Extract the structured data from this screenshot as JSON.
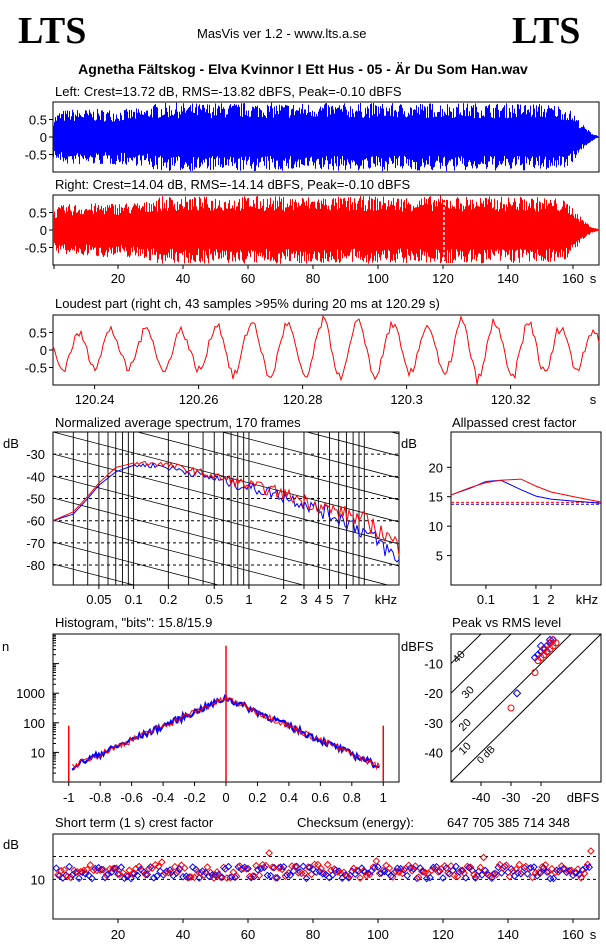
{
  "header": {
    "logo_left": "LTS",
    "logo_right": "LTS",
    "app_title": "MasVis ver 1.2 - www.lts.a.se",
    "file_title": "Agnetha Fältskog - Elva Kvinnor I Ett Hus - 05 - Är Du Som Han.wav"
  },
  "colors": {
    "left": "#0000ff",
    "right": "#ff0000",
    "grid": "#000000"
  },
  "chart_data": [
    {
      "id": "left-waveform",
      "type": "area",
      "title": "Left: Crest=13.72 dB, RMS=-13.82 dBFS, Peak=-0.10 dBFS",
      "yticks": [
        "0.5",
        "0",
        "-0.5"
      ],
      "ylim": [
        -1,
        1
      ],
      "xlim": [
        0,
        168
      ],
      "envelope": {
        "x": [
          0,
          2,
          5,
          10,
          15,
          20,
          25,
          29,
          30,
          35,
          40,
          45,
          50,
          55,
          60,
          65,
          70,
          75,
          80,
          85,
          90,
          95,
          100,
          105,
          110,
          115,
          120,
          125,
          130,
          135,
          140,
          145,
          150,
          155,
          158,
          160,
          162,
          164,
          166,
          168
        ],
        "amp": [
          0.6,
          0.75,
          0.8,
          0.8,
          0.8,
          0.8,
          0.82,
          0.85,
          0.95,
          0.98,
          0.98,
          0.97,
          0.98,
          0.98,
          0.99,
          0.98,
          0.98,
          0.97,
          0.98,
          0.97,
          0.97,
          0.98,
          0.98,
          0.97,
          0.97,
          0.98,
          0.99,
          0.98,
          0.98,
          0.97,
          0.97,
          0.97,
          0.96,
          0.93,
          0.85,
          0.7,
          0.45,
          0.25,
          0.1,
          0.02
        ]
      }
    },
    {
      "id": "right-waveform",
      "type": "area",
      "title": "Right: Crest=14.04 dB, RMS=-14.14 dBFS, Peak=-0.10 dBFS",
      "yticks": [
        "0.5",
        "0",
        "-0.5"
      ],
      "ylim": [
        -1,
        1
      ],
      "xlim": [
        0,
        168
      ],
      "xticks": [
        "20",
        "40",
        "60",
        "80",
        "100",
        "120",
        "140",
        "160"
      ],
      "xunit": "s",
      "marker_x": 120.29,
      "envelope": {
        "x": [
          0,
          2,
          5,
          10,
          15,
          20,
          25,
          29,
          30,
          35,
          40,
          45,
          50,
          55,
          60,
          65,
          70,
          75,
          80,
          85,
          90,
          95,
          100,
          105,
          110,
          115,
          120,
          125,
          130,
          135,
          140,
          145,
          150,
          155,
          158,
          160,
          162,
          164,
          166,
          168
        ],
        "amp": [
          0.55,
          0.7,
          0.75,
          0.75,
          0.78,
          0.78,
          0.8,
          0.82,
          0.95,
          0.97,
          0.97,
          0.96,
          0.97,
          0.97,
          0.98,
          0.97,
          0.97,
          0.96,
          0.97,
          0.96,
          0.96,
          0.97,
          0.97,
          0.96,
          0.96,
          0.97,
          0.99,
          0.97,
          0.97,
          0.96,
          0.96,
          0.96,
          0.95,
          0.92,
          0.82,
          0.65,
          0.4,
          0.22,
          0.08,
          0.02
        ]
      }
    },
    {
      "id": "loudest-part",
      "type": "line",
      "title": "Loudest part (right ch, 43 samples >95% during 20 ms at 120.29 s)",
      "yticks": [
        "0.5",
        "0",
        "-0.5"
      ],
      "ylim": [
        -1,
        1
      ],
      "xlim": [
        120.232,
        120.337
      ],
      "xticks": [
        "120.24",
        "120.26",
        "120.28",
        "120.3",
        "120.32"
      ],
      "xtick_values": [
        120.24,
        120.26,
        120.28,
        120.3,
        120.32
      ],
      "xunit": "s",
      "samples": [
        0.1,
        -0.4,
        -0.6,
        -0.2,
        0.3,
        0.5,
        0.2,
        -0.3,
        -0.5,
        -0.1,
        0.4,
        0.6,
        0.3,
        -0.2,
        -0.6,
        -0.4,
        0.1,
        0.5,
        0.7,
        0.2,
        -0.4,
        -0.7,
        -0.3,
        0.3,
        0.6,
        0.4,
        -0.1,
        -0.5,
        -0.6,
        -0.1,
        0.5,
        0.8,
        0.4,
        -0.3,
        -0.8,
        -0.5,
        0.2,
        0.7,
        0.8,
        0.2,
        -0.5,
        -0.9,
        -0.4,
        0.3,
        0.8,
        0.6,
        -0.1,
        -0.7,
        -0.8,
        -0.2,
        0.5,
        0.9,
        0.5,
        -0.3,
        -0.8,
        -0.6,
        0.1,
        0.7,
        0.8,
        0.2,
        -0.6,
        -0.8,
        -0.3,
        0.4,
        0.8,
        0.5,
        -0.2,
        -0.7,
        -0.6,
        0.1,
        0.6,
        0.7,
        0.2,
        -0.5,
        -0.8,
        -0.3,
        0.4,
        0.9,
        0.5,
        -0.3,
        -0.9,
        -0.6,
        0.2,
        0.8,
        0.7,
        0.0,
        -0.7,
        -0.8,
        -0.1,
        0.6,
        0.8,
        0.3,
        -0.5,
        -0.7,
        -0.2,
        0.5,
        0.7,
        0.3,
        -0.4,
        -0.6,
        -0.1,
        0.4,
        0.6,
        0.2
      ]
    },
    {
      "id": "spectrum",
      "type": "line",
      "title": "Normalized average spectrum, 170 frames",
      "ylabel": "dB",
      "yticks": [
        "-30",
        "-40",
        "-50",
        "-60",
        "-70",
        "-80"
      ],
      "ytick_values": [
        -30,
        -40,
        -50,
        -60,
        -70,
        -80
      ],
      "ylim": [
        -89,
        -20
      ],
      "xlog": true,
      "xlim_khz": [
        0.02,
        20
      ],
      "xticks": [
        "0.05",
        "0.1",
        "0.2",
        "0.5",
        "1",
        "2",
        "3",
        "4",
        "5",
        "7",
        "kHz"
      ],
      "xtick_values": [
        0.05,
        0.1,
        0.2,
        0.5,
        1,
        2,
        3,
        4,
        5,
        7
      ],
      "series": [
        {
          "color": "blue",
          "x": [
            0.02,
            0.03,
            0.04,
            0.05,
            0.07,
            0.1,
            0.15,
            0.2,
            0.3,
            0.5,
            0.7,
            1,
            1.5,
            2,
            3,
            4,
            5,
            7,
            10,
            15,
            20
          ],
          "y": [
            -60,
            -57,
            -50,
            -44,
            -38,
            -35,
            -35,
            -36,
            -38,
            -41,
            -43,
            -45,
            -47,
            -49,
            -52,
            -55,
            -57,
            -60,
            -65,
            -72,
            -79
          ]
        },
        {
          "color": "red",
          "x": [
            0.02,
            0.03,
            0.04,
            0.05,
            0.07,
            0.1,
            0.15,
            0.2,
            0.3,
            0.5,
            0.7,
            1,
            1.5,
            2,
            3,
            4,
            5,
            7,
            10,
            15,
            20
          ],
          "y": [
            -60,
            -56,
            -49,
            -43,
            -36,
            -34,
            -34,
            -35,
            -37,
            -40,
            -42,
            -44,
            -46,
            -48,
            -51,
            -53,
            -55,
            -57,
            -60,
            -66,
            -72
          ]
        }
      ]
    },
    {
      "id": "allpassed-crest",
      "type": "line",
      "title": "Allpassed crest factor",
      "ylabel": "dB",
      "yticks": [
        "20",
        "15",
        "10",
        "5"
      ],
      "ytick_values": [
        20,
        15,
        10,
        5
      ],
      "ylim": [
        0,
        26
      ],
      "xlog": true,
      "xlim_khz": [
        0.02,
        20
      ],
      "xticks": [
        "0.1",
        "1",
        "2",
        "kHz"
      ],
      "xtick_values": [
        0.1,
        1,
        2
      ],
      "series": [
        {
          "color": "blue",
          "x": [
            0.02,
            0.05,
            0.1,
            0.2,
            0.5,
            1,
            2,
            5,
            10,
            20
          ],
          "y": [
            15.3,
            16.5,
            17.6,
            17.8,
            16.2,
            15.1,
            14.6,
            14.3,
            14.1,
            13.9
          ]
        },
        {
          "color": "red",
          "x": [
            0.02,
            0.05,
            0.1,
            0.2,
            0.5,
            1,
            2,
            5,
            10,
            20
          ],
          "y": [
            15.3,
            16.6,
            17.4,
            17.8,
            18.0,
            16.8,
            15.8,
            15.1,
            14.6,
            14.1
          ]
        }
      ],
      "reference_lines": [
        13.72,
        14.04
      ]
    },
    {
      "id": "histogram",
      "type": "line",
      "title": "Histogram, \"bits\": 15.8/15.9",
      "ylabel": "n",
      "ylog": true,
      "yticks": [
        "1000",
        "100",
        "10"
      ],
      "ytick_values": [
        1000,
        100,
        10
      ],
      "ylim": [
        1,
        100000
      ],
      "xlim": [
        -1.1,
        1.1
      ],
      "xticks": [
        "-1",
        "-0.8",
        "-0.6",
        "-0.4",
        "-0.2",
        "0",
        "0.2",
        "0.4",
        "0.6",
        "0.8",
        "1"
      ],
      "xtick_values": [
        -1,
        -0.8,
        -0.6,
        -0.4,
        -0.2,
        0,
        0.2,
        0.4,
        0.6,
        0.8,
        1
      ],
      "peak_count": 700,
      "edge_count": 3,
      "clip_spike": 80
    },
    {
      "id": "peak-vs-rms",
      "type": "scatter",
      "title": "Peak vs RMS level",
      "ylabel": "dBFS",
      "xlabel": "dBFS",
      "yticks": [
        "-10",
        "-20",
        "-30",
        "-40"
      ],
      "ytick_values": [
        -10,
        -20,
        -30,
        -40
      ],
      "xticks": [
        "-40",
        "-30",
        "-20"
      ],
      "xtick_values": [
        -40,
        -30,
        -20
      ],
      "xlim": [
        -50,
        0
      ],
      "ylim": [
        -50,
        0
      ],
      "diagonal_labels": [
        "40",
        "30",
        "20",
        "10",
        "0 dB"
      ],
      "diagonal_values": [
        40,
        30,
        20,
        10,
        0
      ],
      "points_left": {
        "x": [
          -22,
          -21,
          -20,
          -19,
          -18,
          -17,
          -16,
          -20,
          -18,
          -17,
          -28
        ],
        "y": [
          -8,
          -7,
          -6,
          -5,
          -4,
          -3,
          -2,
          -4,
          -6,
          -2,
          -20
        ]
      },
      "points_right": {
        "x": [
          -21,
          -20,
          -19,
          -18,
          -17,
          -16,
          -15,
          -19,
          -17,
          -16,
          -30,
          -22
        ],
        "y": [
          -9,
          -8,
          -7,
          -6,
          -5,
          -4,
          -3,
          -5,
          -3,
          -2,
          -25,
          -13
        ]
      }
    },
    {
      "id": "short-term-crest",
      "type": "scatter",
      "title": "Short term (1 s) crest factor",
      "ylabel": "dB",
      "yticks": [
        "10"
      ],
      "ytick_values": [
        10
      ],
      "ylim": [
        3,
        18
      ],
      "xlim": [
        0,
        168
      ],
      "xticks": [
        "20",
        "40",
        "60",
        "80",
        "100",
        "120",
        "140",
        "160"
      ],
      "xtick_values": [
        20,
        40,
        60,
        80,
        100,
        120,
        140,
        160
      ],
      "xunit": "s",
      "ref_levels": [
        14.04,
        10
      ],
      "checksum_label": "Checksum (energy):",
      "checksum_value": "647 705 385 714 348"
    }
  ]
}
